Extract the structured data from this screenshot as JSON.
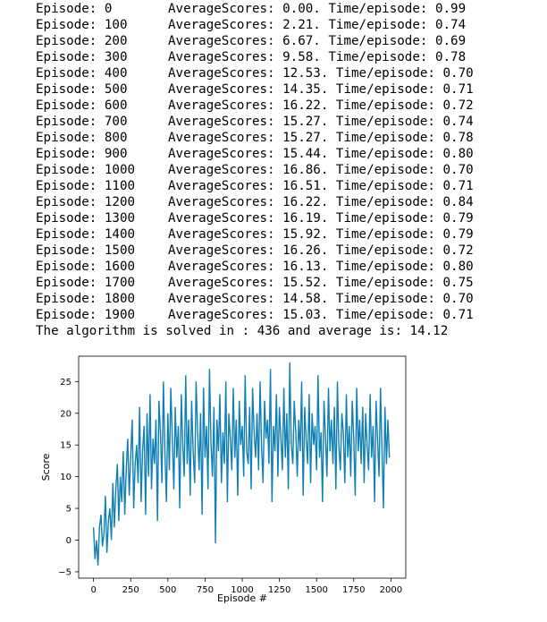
{
  "log": {
    "rows": [
      {
        "episode": "Episode: 0",
        "stats": "AverageScores: 0.00. Time/episode: 0.99"
      },
      {
        "episode": "Episode: 100",
        "stats": "AverageScores: 2.21. Time/episode: 0.74"
      },
      {
        "episode": "Episode: 200",
        "stats": "AverageScores: 6.67. Time/episode: 0.69"
      },
      {
        "episode": "Episode: 300",
        "stats": "AverageScores: 9.58. Time/episode: 0.78"
      },
      {
        "episode": "Episode: 400",
        "stats": "AverageScores: 12.53. Time/episode: 0.70"
      },
      {
        "episode": "Episode: 500",
        "stats": "AverageScores: 14.35. Time/episode: 0.71"
      },
      {
        "episode": "Episode: 600",
        "stats": "AverageScores: 16.22. Time/episode: 0.72"
      },
      {
        "episode": "Episode: 700",
        "stats": "AverageScores: 15.27. Time/episode: 0.74"
      },
      {
        "episode": "Episode: 800",
        "stats": "AverageScores: 15.27. Time/episode: 0.78"
      },
      {
        "episode": "Episode: 900",
        "stats": "AverageScores: 15.44. Time/episode: 0.80"
      },
      {
        "episode": "Episode: 1000",
        "stats": "AverageScores: 16.86. Time/episode: 0.70"
      },
      {
        "episode": "Episode: 1100",
        "stats": "AverageScores: 16.51. Time/episode: 0.71"
      },
      {
        "episode": "Episode: 1200",
        "stats": "AverageScores: 16.22. Time/episode: 0.84"
      },
      {
        "episode": "Episode: 1300",
        "stats": "AverageScores: 16.19. Time/episode: 0.79"
      },
      {
        "episode": "Episode: 1400",
        "stats": "AverageScores: 15.92. Time/episode: 0.79"
      },
      {
        "episode": "Episode: 1500",
        "stats": "AverageScores: 16.26. Time/episode: 0.72"
      },
      {
        "episode": "Episode: 1600",
        "stats": "AverageScores: 16.13. Time/episode: 0.80"
      },
      {
        "episode": "Episode: 1700",
        "stats": "AverageScores: 15.52. Time/episode: 0.75"
      },
      {
        "episode": "Episode: 1800",
        "stats": "AverageScores: 14.58. Time/episode: 0.70"
      },
      {
        "episode": "Episode: 1900",
        "stats": "AverageScores: 15.03. Time/episode: 0.71"
      }
    ],
    "summary": "The algorithm is solved in : 436 and average is: 14.12"
  },
  "chart_data": {
    "type": "line",
    "title": "",
    "xlabel": "Episode #",
    "ylabel": "Score",
    "xlim": [
      -100,
      2100
    ],
    "ylim": [
      -6,
      29
    ],
    "xticks": [
      0,
      250,
      500,
      750,
      1000,
      1250,
      1500,
      1750,
      2000
    ],
    "yticks": [
      -5,
      0,
      5,
      10,
      15,
      20,
      25
    ],
    "grid": false,
    "line_color": "#0f7fb4",
    "series": [
      {
        "x": [
          0,
          10,
          20,
          30,
          40,
          50,
          60,
          70,
          80,
          90,
          100,
          110,
          120,
          130,
          140,
          150,
          160,
          170,
          180,
          190,
          200,
          210,
          220,
          230,
          240,
          250,
          260,
          270,
          280,
          290,
          300,
          310,
          320,
          330,
          340,
          350,
          360,
          370,
          380,
          390,
          400,
          410,
          420,
          430,
          440,
          450,
          460,
          470,
          480,
          490,
          500,
          510,
          520,
          530,
          540,
          550,
          560,
          570,
          580,
          590,
          600,
          610,
          620,
          630,
          640,
          650,
          660,
          670,
          680,
          690,
          700,
          710,
          720,
          730,
          740,
          750,
          760,
          770,
          780,
          790,
          800,
          810,
          820,
          830,
          840,
          850,
          860,
          870,
          880,
          890,
          900,
          910,
          920,
          930,
          940,
          950,
          960,
          970,
          980,
          990,
          1000,
          1010,
          1020,
          1030,
          1040,
          1050,
          1060,
          1070,
          1080,
          1090,
          1100,
          1110,
          1120,
          1130,
          1140,
          1150,
          1160,
          1170,
          1180,
          1190,
          1200,
          1210,
          1220,
          1230,
          1240,
          1250,
          1260,
          1270,
          1280,
          1290,
          1300,
          1310,
          1320,
          1330,
          1340,
          1350,
          1360,
          1370,
          1380,
          1390,
          1400,
          1410,
          1420,
          1430,
          1440,
          1450,
          1460,
          1470,
          1480,
          1490,
          1500,
          1510,
          1520,
          1530,
          1540,
          1550,
          1560,
          1570,
          1580,
          1590,
          1600,
          1610,
          1620,
          1630,
          1640,
          1650,
          1660,
          1670,
          1680,
          1690,
          1700,
          1710,
          1720,
          1730,
          1740,
          1750,
          1760,
          1770,
          1780,
          1790,
          1800,
          1810,
          1820,
          1830,
          1840,
          1850,
          1860,
          1870,
          1880,
          1890,
          1900,
          1910,
          1920,
          1930,
          1940,
          1950,
          1960,
          1970,
          1980,
          1990
        ],
        "values": [
          2,
          -3,
          0,
          -4,
          2,
          4,
          -1,
          1,
          7,
          -2,
          3,
          5,
          0,
          9,
          2,
          8,
          12,
          3,
          10,
          6,
          14,
          4,
          11,
          16,
          7,
          13,
          19,
          5,
          12,
          15,
          9,
          21,
          6,
          14,
          18,
          4,
          20,
          10,
          23,
          8,
          16,
          12,
          19,
          3,
          22,
          17,
          9,
          25,
          14,
          6,
          20,
          11,
          24,
          16,
          8,
          21,
          13,
          18,
          5,
          23,
          15,
          10,
          26,
          12,
          19,
          7,
          22,
          14,
          9,
          25,
          17,
          11,
          20,
          4,
          24,
          13,
          18,
          8,
          27,
          15,
          10,
          21,
          -0.5,
          19,
          14,
          23,
          9,
          17,
          12,
          25,
          6,
          20,
          16,
          11,
          24,
          13,
          19,
          7,
          22,
          15,
          18,
          10,
          26,
          14,
          12,
          21,
          8,
          24,
          17,
          13,
          20,
          11,
          25,
          15,
          9,
          22,
          16,
          19,
          12,
          27,
          6,
          18,
          14,
          23,
          10,
          21,
          16,
          11,
          24,
          13,
          20,
          8,
          28,
          15,
          12,
          22,
          17,
          10,
          19,
          14,
          25,
          7,
          21,
          16,
          12,
          23,
          9,
          20,
          15,
          18,
          11,
          26,
          13,
          17,
          6,
          22,
          16,
          10,
          24,
          14,
          19,
          12,
          21,
          8,
          25,
          15,
          11,
          20,
          17,
          9,
          23,
          13,
          18,
          10,
          22,
          16,
          7,
          24,
          14,
          19,
          12,
          21,
          9,
          20,
          15,
          11,
          23,
          13,
          18,
          6,
          22,
          16,
          10,
          24,
          14,
          5,
          21,
          12,
          19,
          13
        ]
      }
    ]
  }
}
